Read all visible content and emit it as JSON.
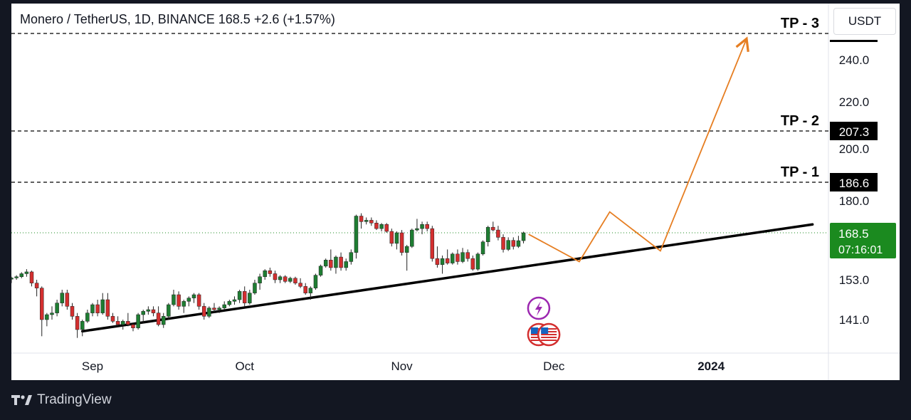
{
  "header": {
    "title": "Monero / TetherUS, 1D, BINANCE  168.5  +2.6 (+1.57%)",
    "currency_button": "USDT"
  },
  "footer": {
    "brand": "TradingView"
  },
  "colors": {
    "up": "#26a69a",
    "up_body": "#1e7d32",
    "down": "#d32f2f",
    "last_price": "#1b8a1f",
    "projection": "#e67e22",
    "trendline": "#000000",
    "price_label_bg": "#000000"
  },
  "chart_data": {
    "type": "candlestick",
    "symbol": "Monero / TetherUS",
    "interval": "1D",
    "exchange": "BINANCE",
    "last": 168.5,
    "change": "+2.6 (+1.57%)",
    "countdown": "07:16:01",
    "y_axis": {
      "ticks": [
        141.0,
        153.0,
        168.5,
        180.0,
        186.6,
        200.0,
        207.3,
        220.0,
        240.0
      ],
      "tick_labels": [
        "141.0",
        "153.0",
        "180.0",
        "200.0",
        "220.0",
        "240.0"
      ],
      "range": [
        131,
        252
      ]
    },
    "x_axis": {
      "labels": [
        {
          "text": "Sep",
          "date": "2023-09-01"
        },
        {
          "text": "Oct",
          "date": "2023-10-01"
        },
        {
          "text": "Nov",
          "date": "2023-11-01"
        },
        {
          "text": "Dec",
          "date": "2023-12-01"
        },
        {
          "text": "2024",
          "date": "2024-01-01"
        }
      ],
      "range": [
        "2023-08-16",
        "2024-01-24"
      ]
    },
    "candles_start_date": "2023-08-16",
    "candles": [
      [
        153.2,
        154.0,
        152.0,
        153.6
      ],
      [
        153.6,
        154.5,
        153.0,
        154.0
      ],
      [
        154.0,
        155.5,
        153.5,
        155.0
      ],
      [
        155.0,
        156.5,
        154.0,
        155.6
      ],
      [
        155.6,
        156.0,
        151.0,
        152.0
      ],
      [
        152.0,
        153.0,
        148.0,
        150.5
      ],
      [
        150.5,
        151.0,
        136.0,
        141.0
      ],
      [
        141.0,
        143.0,
        139.0,
        142.5
      ],
      [
        142.5,
        145.0,
        141.0,
        143.0
      ],
      [
        143.0,
        147.0,
        142.0,
        146.0
      ],
      [
        146.0,
        150.0,
        145.0,
        149.0
      ],
      [
        149.0,
        150.0,
        144.0,
        145.0
      ],
      [
        145.0,
        146.0,
        141.0,
        142.0
      ],
      [
        142.0,
        143.0,
        135.5,
        138.0
      ],
      [
        138.0,
        141.0,
        136.0,
        140.5
      ],
      [
        140.5,
        144.0,
        140.0,
        143.0
      ],
      [
        143.0,
        146.0,
        142.0,
        145.5
      ],
      [
        145.5,
        147.0,
        142.0,
        143.0
      ],
      [
        143.0,
        149.0,
        142.5,
        147.0
      ],
      [
        147.0,
        149.0,
        141.0,
        142.0
      ],
      [
        142.0,
        143.0,
        140.0,
        140.5
      ],
      [
        140.5,
        142.0,
        139.0,
        139.5
      ],
      [
        139.5,
        141.0,
        138.0,
        140.5
      ],
      [
        140.5,
        143.0,
        139.0,
        139.5
      ],
      [
        139.5,
        140.0,
        137.5,
        138.5
      ],
      [
        138.5,
        143.0,
        138.0,
        142.5
      ],
      [
        142.5,
        144.0,
        140.0,
        143.5
      ],
      [
        143.5,
        145.0,
        142.5,
        144.0
      ],
      [
        144.0,
        145.0,
        142.0,
        143.0
      ],
      [
        143.0,
        145.0,
        139.0,
        139.5
      ],
      [
        139.5,
        143.0,
        138.5,
        142.0
      ],
      [
        142.0,
        146.0,
        141.0,
        145.5
      ],
      [
        145.5,
        150.0,
        145.0,
        148.5
      ],
      [
        148.5,
        149.5,
        144.0,
        145.0
      ],
      [
        145.0,
        147.0,
        143.0,
        146.5
      ],
      [
        146.5,
        148.0,
        145.0,
        147.5
      ],
      [
        147.5,
        149.0,
        146.0,
        148.5
      ],
      [
        148.5,
        149.0,
        144.0,
        145.0
      ],
      [
        145.0,
        146.0,
        141.0,
        142.0
      ],
      [
        142.0,
        145.0,
        141.5,
        144.5
      ],
      [
        144.5,
        146.0,
        143.0,
        144.0
      ],
      [
        144.0,
        145.0,
        143.0,
        144.5
      ],
      [
        144.5,
        146.5,
        144.0,
        145.5
      ],
      [
        145.5,
        147.0,
        145.0,
        146.5
      ],
      [
        146.5,
        148.0,
        145.5,
        147.0
      ],
      [
        147.0,
        150.0,
        146.0,
        149.5
      ],
      [
        149.5,
        151.0,
        145.0,
        146.0
      ],
      [
        146.0,
        150.0,
        145.5,
        149.0
      ],
      [
        149.0,
        153.0,
        148.5,
        152.0
      ],
      [
        152.0,
        155.0,
        150.0,
        154.0
      ],
      [
        154.0,
        156.5,
        153.0,
        156.0
      ],
      [
        156.0,
        157.0,
        154.0,
        155.0
      ],
      [
        155.0,
        156.0,
        152.0,
        153.0
      ],
      [
        153.0,
        154.5,
        152.0,
        154.0
      ],
      [
        154.0,
        154.5,
        152.0,
        152.5
      ],
      [
        152.5,
        154.0,
        152.0,
        153.5
      ],
      [
        153.5,
        154.0,
        151.5,
        152.0
      ],
      [
        152.0,
        153.5,
        150.5,
        151.0
      ],
      [
        151.0,
        152.0,
        148.5,
        149.0
      ],
      [
        149.0,
        151.0,
        147.0,
        150.5
      ],
      [
        150.5,
        155.0,
        150.0,
        154.5
      ],
      [
        154.5,
        158.0,
        154.0,
        157.5
      ],
      [
        157.5,
        160.0,
        157.0,
        159.5
      ],
      [
        159.5,
        163.0,
        156.0,
        157.0
      ],
      [
        157.0,
        161.0,
        155.0,
        160.5
      ],
      [
        160.5,
        162.0,
        156.0,
        157.0
      ],
      [
        157.0,
        160.0,
        156.0,
        159.0
      ],
      [
        159.0,
        163.0,
        158.0,
        162.0
      ],
      [
        162.0,
        175.0,
        160.0,
        174.5
      ],
      [
        174.5,
        175.5,
        170.0,
        172.5
      ],
      [
        172.5,
        174.0,
        171.5,
        173.0
      ],
      [
        173.0,
        174.0,
        171.0,
        172.0
      ],
      [
        172.0,
        173.0,
        169.5,
        170.0
      ],
      [
        170.0,
        172.0,
        169.0,
        171.5
      ],
      [
        171.5,
        172.0,
        168.5,
        169.0
      ],
      [
        169.0,
        170.0,
        164.0,
        165.0
      ],
      [
        165.0,
        169.0,
        163.0,
        168.5
      ],
      [
        168.5,
        169.5,
        161.0,
        162.0
      ],
      [
        162.0,
        164.5,
        156.0,
        164.0
      ],
      [
        164.0,
        170.0,
        163.5,
        169.5
      ],
      [
        169.5,
        173.5,
        169.0,
        170.0
      ],
      [
        170.0,
        172.5,
        168.0,
        171.5
      ],
      [
        171.5,
        172.5,
        169.0,
        170.0
      ],
      [
        170.0,
        171.0,
        159.0,
        160.0
      ],
      [
        160.0,
        164.0,
        157.0,
        158.0
      ],
      [
        158.0,
        161.0,
        155.0,
        160.0
      ],
      [
        160.0,
        163.0,
        158.0,
        158.5
      ],
      [
        158.5,
        162.0,
        158.0,
        161.5
      ],
      [
        161.5,
        163.0,
        158.0,
        159.0
      ],
      [
        159.0,
        163.5,
        158.5,
        162.0
      ],
      [
        162.0,
        163.0,
        159.0,
        160.0
      ],
      [
        160.0,
        161.0,
        156.0,
        156.5
      ],
      [
        156.5,
        162.0,
        156.0,
        161.5
      ],
      [
        161.5,
        166.0,
        161.0,
        165.5
      ],
      [
        165.5,
        171.0,
        164.0,
        170.5
      ],
      [
        170.5,
        172.5,
        169.0,
        169.5
      ],
      [
        169.5,
        171.0,
        166.0,
        167.0
      ],
      [
        167.0,
        168.0,
        162.0,
        163.0
      ],
      [
        163.0,
        167.0,
        162.5,
        166.0
      ],
      [
        166.0,
        167.0,
        163.0,
        164.0
      ],
      [
        164.0,
        167.5,
        163.5,
        165.9
      ],
      [
        165.9,
        168.9,
        165.0,
        168.5
      ]
    ],
    "trendline": [
      [
        "2023-08-30",
        137.5
      ],
      [
        "2024-01-21",
        171.5
      ]
    ],
    "projection_path": [
      [
        "2023-11-26",
        168.0
      ],
      [
        "2023-12-06",
        159.0
      ],
      [
        "2023-12-12",
        176.0
      ],
      [
        "2023-12-22",
        162.5
      ],
      [
        "2024-01-08",
        248.0
      ]
    ],
    "levels": [
      {
        "label": "TP - 1",
        "value": 186.6,
        "value_label": "186.6"
      },
      {
        "label": "TP - 2",
        "value": 207.3,
        "value_label": "207.3"
      },
      {
        "label": "TP - 3",
        "value": 250.0,
        "value_label": ""
      }
    ],
    "event_markers": [
      {
        "icon": "lightning-icon",
        "date": "2023-11-28"
      },
      {
        "icon": "us-flag-icon",
        "date": "2023-11-28"
      },
      {
        "icon": "us-flag-icon",
        "date": "2023-11-30"
      }
    ],
    "grid": false
  }
}
